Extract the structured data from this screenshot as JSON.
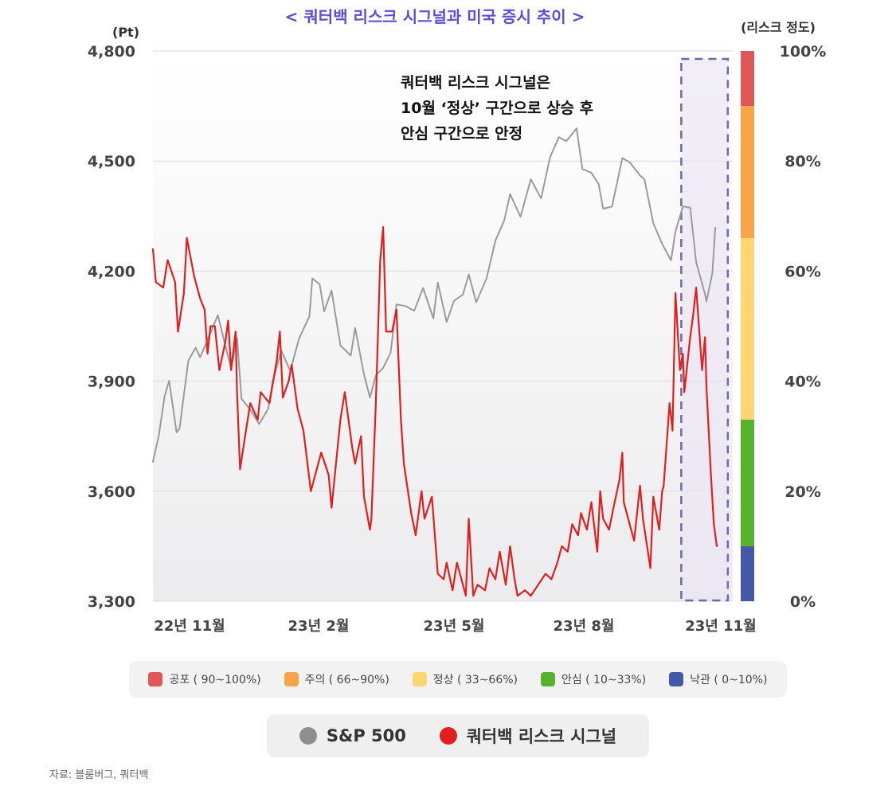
{
  "chart_data": {
    "type": "line",
    "title": "< 쿼터백 리스크 시그널과 미국 증시 추이 >",
    "left_axis": {
      "unit": "(Pt)",
      "ylim": [
        3300,
        4800
      ],
      "ticks": [
        "4,800",
        "4,500",
        "4,200",
        "3,900",
        "3,600",
        "3,300"
      ]
    },
    "right_axis": {
      "unit": "(리스크 정도)",
      "ylim": [
        0,
        100
      ],
      "ticks": [
        "100%",
        "80%",
        "60%",
        "40%",
        "20%",
        "0%"
      ]
    },
    "x_ticks": [
      "22년 11월",
      "23년 2월",
      "23년 5월",
      "23년 8월",
      "23년 11월"
    ],
    "x_range": [
      "2022-10-17",
      "2023-11-03"
    ],
    "risk_bands": [
      {
        "label": "공포 ( 90~100%)",
        "from": 90,
        "to": 100,
        "color": "#E05757"
      },
      {
        "label": "주의 ( 66~90%)",
        "from": 66,
        "to": 90,
        "color": "#F6A447"
      },
      {
        "label": "정상 ( 33~66%)",
        "from": 33,
        "to": 66,
        "color": "#FDD572"
      },
      {
        "label": "안심 ( 10~33%)",
        "from": 10,
        "to": 33,
        "color": "#55B32E"
      },
      {
        "label": "낙관 ( 0~10%)",
        "from": 0,
        "to": 10,
        "color": "#4458A8"
      }
    ],
    "series": [
      {
        "name": "S&P 500",
        "axis": "left",
        "color": "#9B9B9B",
        "points": [
          [
            "2022-10-17",
            3680
          ],
          [
            "2022-10-21",
            3752
          ],
          [
            "2022-10-25",
            3860
          ],
          [
            "2022-10-28",
            3901
          ],
          [
            "2022-11-02",
            3760
          ],
          [
            "2022-11-04",
            3771
          ],
          [
            "2022-11-10",
            3956
          ],
          [
            "2022-11-15",
            3991
          ],
          [
            "2022-11-18",
            3965
          ],
          [
            "2022-11-22",
            4003
          ],
          [
            "2022-11-30",
            4080
          ],
          [
            "2022-12-05",
            3998
          ],
          [
            "2022-12-09",
            3934
          ],
          [
            "2022-12-13",
            4019
          ],
          [
            "2022-12-16",
            3852
          ],
          [
            "2022-12-22",
            3822
          ],
          [
            "2022-12-28",
            3783
          ],
          [
            "2023-01-03",
            3824
          ],
          [
            "2023-01-06",
            3895
          ],
          [
            "2023-01-12",
            3983
          ],
          [
            "2023-01-18",
            3928
          ],
          [
            "2023-01-24",
            4016
          ],
          [
            "2023-01-31",
            4077
          ],
          [
            "2023-02-02",
            4180
          ],
          [
            "2023-02-07",
            4164
          ],
          [
            "2023-02-10",
            4090
          ],
          [
            "2023-02-15",
            4147
          ],
          [
            "2023-02-21",
            3997
          ],
          [
            "2023-02-28",
            3970
          ],
          [
            "2023-03-03",
            4045
          ],
          [
            "2023-03-09",
            3918
          ],
          [
            "2023-03-13",
            3855
          ],
          [
            "2023-03-17",
            3916
          ],
          [
            "2023-03-22",
            3936
          ],
          [
            "2023-03-27",
            3977
          ],
          [
            "2023-03-31",
            4109
          ],
          [
            "2023-04-06",
            4105
          ],
          [
            "2023-04-12",
            4092
          ],
          [
            "2023-04-18",
            4154
          ],
          [
            "2023-04-25",
            4071
          ],
          [
            "2023-04-28",
            4169
          ],
          [
            "2023-05-04",
            4061
          ],
          [
            "2023-05-09",
            4119
          ],
          [
            "2023-05-15",
            4136
          ],
          [
            "2023-05-19",
            4191
          ],
          [
            "2023-05-24",
            4115
          ],
          [
            "2023-05-31",
            4180
          ],
          [
            "2023-06-06",
            4283
          ],
          [
            "2023-06-12",
            4338
          ],
          [
            "2023-06-16",
            4410
          ],
          [
            "2023-06-23",
            4348
          ],
          [
            "2023-06-30",
            4450
          ],
          [
            "2023-07-07",
            4398
          ],
          [
            "2023-07-13",
            4510
          ],
          [
            "2023-07-19",
            4565
          ],
          [
            "2023-07-24",
            4554
          ],
          [
            "2023-07-31",
            4589
          ],
          [
            "2023-08-04",
            4478
          ],
          [
            "2023-08-10",
            4468
          ],
          [
            "2023-08-15",
            4437
          ],
          [
            "2023-08-18",
            4370
          ],
          [
            "2023-08-24",
            4376
          ],
          [
            "2023-08-31",
            4508
          ],
          [
            "2023-09-05",
            4497
          ],
          [
            "2023-09-12",
            4461
          ],
          [
            "2023-09-15",
            4450
          ],
          [
            "2023-09-21",
            4330
          ],
          [
            "2023-09-27",
            4274
          ],
          [
            "2023-10-03",
            4229
          ],
          [
            "2023-10-06",
            4308
          ],
          [
            "2023-10-11",
            4376
          ],
          [
            "2023-10-16",
            4373
          ],
          [
            "2023-10-20",
            4224
          ],
          [
            "2023-10-26",
            4137
          ],
          [
            "2023-10-27",
            4117
          ],
          [
            "2023-10-31",
            4194
          ],
          [
            "2023-11-02",
            4318
          ]
        ]
      },
      {
        "name": "쿼터백 리스크 시그널",
        "axis": "right",
        "color": "#E0201F",
        "points": [
          [
            "2022-10-17",
            64
          ],
          [
            "2022-10-19",
            58
          ],
          [
            "2022-10-24",
            57
          ],
          [
            "2022-10-27",
            62
          ],
          [
            "2022-11-01",
            58
          ],
          [
            "2022-11-03",
            49
          ],
          [
            "2022-11-07",
            56
          ],
          [
            "2022-11-09",
            66
          ],
          [
            "2022-11-14",
            59
          ],
          [
            "2022-11-18",
            55
          ],
          [
            "2022-11-21",
            53
          ],
          [
            "2022-11-23",
            45
          ],
          [
            "2022-11-25",
            50
          ],
          [
            "2022-11-28",
            50
          ],
          [
            "2022-12-01",
            42
          ],
          [
            "2022-12-05",
            47
          ],
          [
            "2022-12-07",
            51
          ],
          [
            "2022-12-09",
            42
          ],
          [
            "2022-12-12",
            49
          ],
          [
            "2022-12-13",
            38
          ],
          [
            "2022-12-15",
            24
          ],
          [
            "2022-12-19",
            31
          ],
          [
            "2022-12-22",
            36
          ],
          [
            "2022-12-27",
            33
          ],
          [
            "2022-12-29",
            38
          ],
          [
            "2023-01-04",
            36
          ],
          [
            "2023-01-09",
            44
          ],
          [
            "2023-01-11",
            49
          ],
          [
            "2023-01-13",
            37
          ],
          [
            "2023-01-17",
            40
          ],
          [
            "2023-01-19",
            43
          ],
          [
            "2023-01-23",
            35
          ],
          [
            "2023-01-27",
            31
          ],
          [
            "2023-02-01",
            20
          ],
          [
            "2023-02-03",
            22
          ],
          [
            "2023-02-08",
            27
          ],
          [
            "2023-02-13",
            23
          ],
          [
            "2023-02-15",
            17
          ],
          [
            "2023-02-21",
            33
          ],
          [
            "2023-02-24",
            38
          ],
          [
            "2023-03-01",
            28
          ],
          [
            "2023-03-03",
            25
          ],
          [
            "2023-03-07",
            30
          ],
          [
            "2023-03-09",
            19
          ],
          [
            "2023-03-13",
            13
          ],
          [
            "2023-03-14",
            15
          ],
          [
            "2023-03-17",
            36
          ],
          [
            "2023-03-20",
            62
          ],
          [
            "2023-03-22",
            68
          ],
          [
            "2023-03-24",
            49
          ],
          [
            "2023-03-28",
            49
          ],
          [
            "2023-03-31",
            53
          ],
          [
            "2023-04-03",
            33
          ],
          [
            "2023-04-05",
            25
          ],
          [
            "2023-04-10",
            16
          ],
          [
            "2023-04-13",
            12
          ],
          [
            "2023-04-17",
            20
          ],
          [
            "2023-04-19",
            15
          ],
          [
            "2023-04-24",
            19
          ],
          [
            "2023-04-28",
            5
          ],
          [
            "2023-05-02",
            4
          ],
          [
            "2023-05-04",
            7
          ],
          [
            "2023-05-08",
            2
          ],
          [
            "2023-05-11",
            7
          ],
          [
            "2023-05-15",
            3
          ],
          [
            "2023-05-17",
            1
          ],
          [
            "2023-05-19",
            15
          ],
          [
            "2023-05-22",
            1
          ],
          [
            "2023-05-25",
            3
          ],
          [
            "2023-05-30",
            2
          ],
          [
            "2023-06-02",
            6
          ],
          [
            "2023-06-06",
            4
          ],
          [
            "2023-06-09",
            9
          ],
          [
            "2023-06-13",
            3
          ],
          [
            "2023-06-16",
            10
          ],
          [
            "2023-06-19",
            4
          ],
          [
            "2023-06-21",
            1
          ],
          [
            "2023-06-26",
            2
          ],
          [
            "2023-06-30",
            1
          ],
          [
            "2023-07-05",
            3
          ],
          [
            "2023-07-10",
            5
          ],
          [
            "2023-07-14",
            4
          ],
          [
            "2023-07-18",
            7
          ],
          [
            "2023-07-21",
            10
          ],
          [
            "2023-07-25",
            9
          ],
          [
            "2023-07-28",
            14
          ],
          [
            "2023-08-01",
            12
          ],
          [
            "2023-08-03",
            16
          ],
          [
            "2023-08-07",
            13
          ],
          [
            "2023-08-10",
            18
          ],
          [
            "2023-08-14",
            9
          ],
          [
            "2023-08-16",
            20
          ],
          [
            "2023-08-18",
            15
          ],
          [
            "2023-08-22",
            13
          ],
          [
            "2023-08-25",
            17
          ],
          [
            "2023-08-29",
            22
          ],
          [
            "2023-08-31",
            27
          ],
          [
            "2023-09-01",
            18
          ],
          [
            "2023-09-05",
            14
          ],
          [
            "2023-09-08",
            11
          ],
          [
            "2023-09-12",
            21
          ],
          [
            "2023-09-14",
            15
          ],
          [
            "2023-09-19",
            6
          ],
          [
            "2023-09-21",
            19
          ],
          [
            "2023-09-25",
            13
          ],
          [
            "2023-09-27",
            20
          ],
          [
            "2023-09-28",
            21
          ],
          [
            "2023-10-02",
            36
          ],
          [
            "2023-10-04",
            31
          ],
          [
            "2023-10-06",
            56
          ],
          [
            "2023-10-09",
            42
          ],
          [
            "2023-10-11",
            45
          ],
          [
            "2023-10-12",
            38
          ],
          [
            "2023-10-16",
            48
          ],
          [
            "2023-10-18",
            52
          ],
          [
            "2023-10-20",
            57
          ],
          [
            "2023-10-24",
            42
          ],
          [
            "2023-10-26",
            48
          ],
          [
            "2023-10-27",
            39
          ],
          [
            "2023-10-30",
            23
          ],
          [
            "2023-11-01",
            14
          ],
          [
            "2023-11-03",
            10
          ]
        ]
      }
    ],
    "annotation": [
      "쿼터백 리스크 시그널은",
      "10월 ‘정상’ 구간으로 상승 후",
      "안심 구간으로 안정"
    ],
    "highlight": {
      "from": "2023-10-11",
      "to": "2023-11-04",
      "style": "dashed"
    },
    "grid": true
  },
  "legend_bands": [
    {
      "label": "공포 ( 90~100%)",
      "color": "#E05757"
    },
    {
      "label": "주의 ( 66~90%)",
      "color": "#F6A447"
    },
    {
      "label": "정상 ( 33~66%)",
      "color": "#FDD572"
    },
    {
      "label": "안심 ( 10~33%)",
      "color": "#55B32E"
    },
    {
      "label": "낙관 ( 0~10%)",
      "color": "#4458A8"
    }
  ],
  "legend_series": [
    {
      "label": "S&P 500",
      "color": "#8E8E8E"
    },
    {
      "label": "쿼터백 리스크 시그널",
      "color": "#E0201F"
    }
  ],
  "source": "자료: 블룸버그, 쿼터백"
}
